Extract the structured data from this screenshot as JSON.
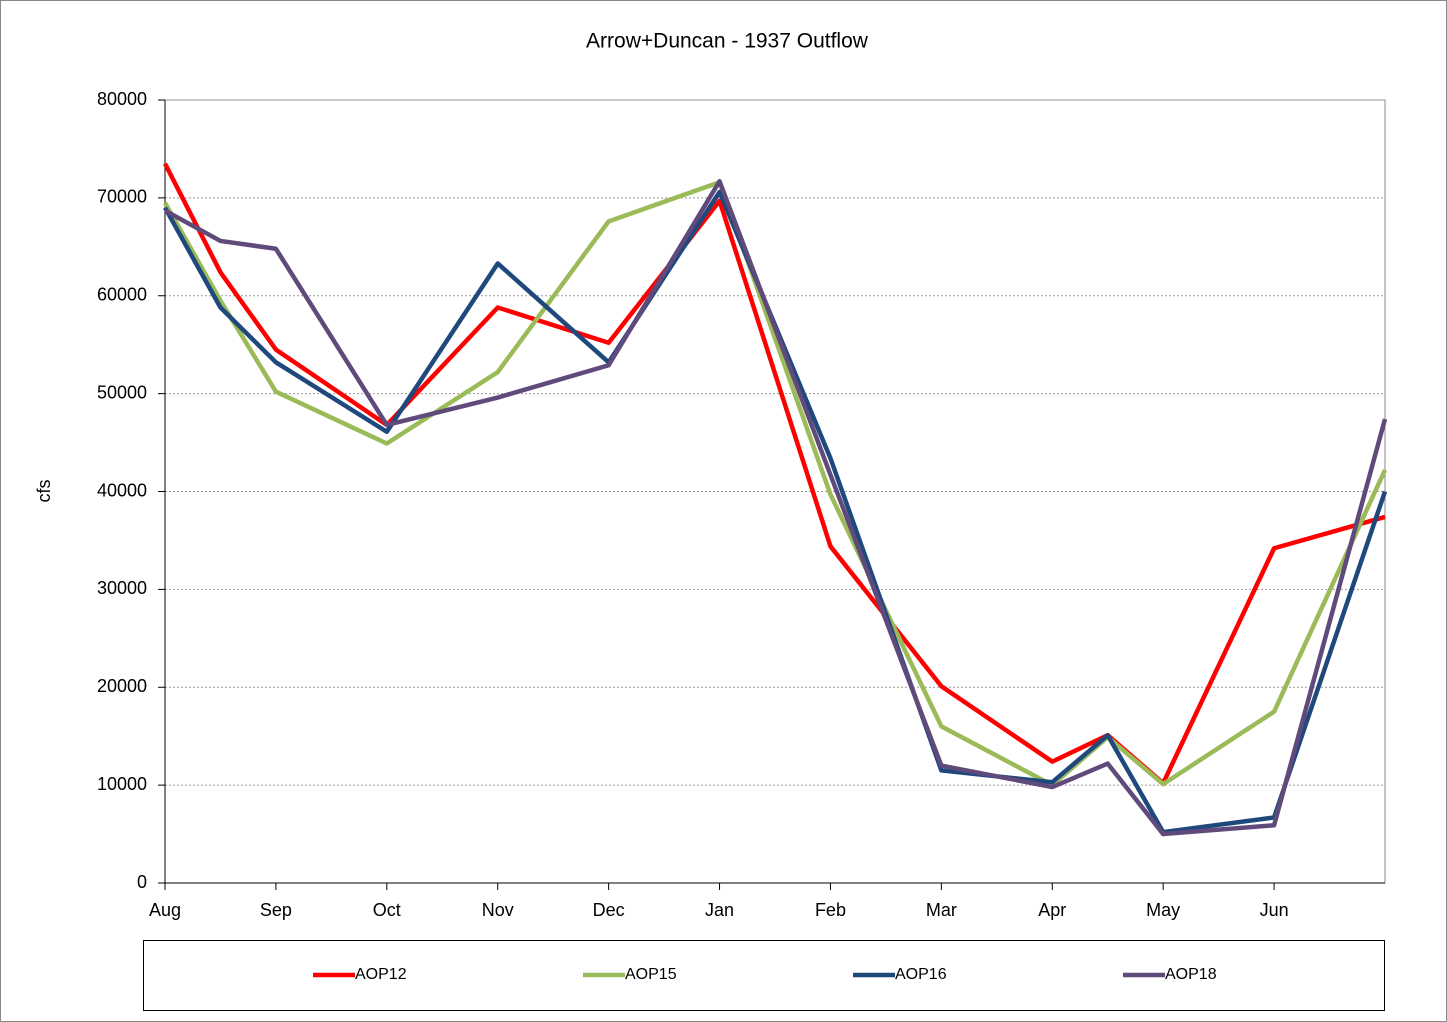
{
  "chart_data": {
    "type": "line",
    "title": "Arrow+Duncan - 1937 Outflow",
    "y_label": "cfs",
    "x": [
      0,
      0.5,
      1,
      2,
      3,
      4,
      5,
      6,
      7,
      8,
      8.5,
      9,
      10,
      11
    ],
    "xlim": [
      0,
      11
    ],
    "xticks": [
      {
        "value": 0,
        "label": "Aug"
      },
      {
        "value": 1,
        "label": "Sep"
      },
      {
        "value": 2,
        "label": "Oct"
      },
      {
        "value": 3,
        "label": "Nov"
      },
      {
        "value": 4,
        "label": "Dec"
      },
      {
        "value": 5,
        "label": "Jan"
      },
      {
        "value": 6,
        "label": "Feb"
      },
      {
        "value": 7,
        "label": "Mar"
      },
      {
        "value": 8,
        "label": "Apr"
      },
      {
        "value": 9,
        "label": "May"
      },
      {
        "value": 10,
        "label": "Jun"
      }
    ],
    "ylim": [
      0,
      80000
    ],
    "yticks": [
      0,
      10000,
      20000,
      30000,
      40000,
      50000,
      60000,
      70000,
      80000
    ],
    "grid": true,
    "legend": "bottom",
    "series": [
      {
        "name": "AOP12",
        "color": "#ff0000",
        "values": [
          73500,
          62400,
          54500,
          46800,
          58800,
          55200,
          69700,
          34400,
          20100,
          12400,
          15100,
          10200,
          34200,
          37400
        ]
      },
      {
        "name": "AOP15",
        "color": "#9bbb59",
        "values": [
          69500,
          59500,
          50200,
          44900,
          52200,
          67600,
          71600,
          39700,
          16000,
          10000,
          14900,
          10100,
          17500,
          42200
        ]
      },
      {
        "name": "AOP16",
        "color": "#1f497d",
        "values": [
          69000,
          58800,
          53200,
          46100,
          63300,
          53200,
          70600,
          43400,
          11500,
          10300,
          15100,
          5200,
          6700,
          40000
        ]
      },
      {
        "name": "AOP18",
        "color": "#604a7b",
        "values": [
          68700,
          65600,
          64800,
          46800,
          49600,
          52900,
          71700,
          41700,
          12000,
          9800,
          12200,
          5000,
          5900,
          47400
        ]
      }
    ]
  }
}
